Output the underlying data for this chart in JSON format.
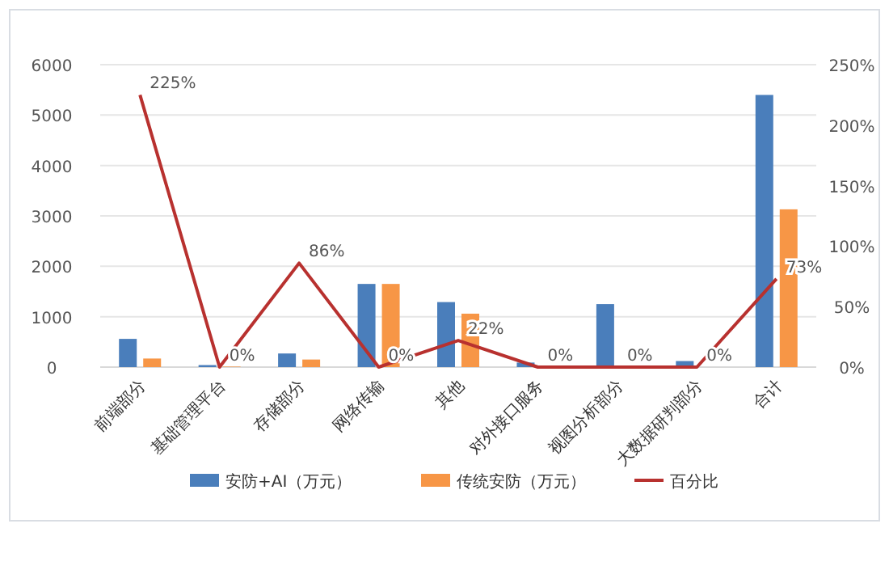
{
  "chart_data": {
    "type": "bar",
    "categories": [
      "前端部分",
      "基础管理平台",
      "存储部分",
      "网络传输",
      "其他",
      "对外接口服务",
      "视图分析部分",
      "大数据研判部分",
      "合计"
    ],
    "series": [
      {
        "name": "安防+AI（万元）",
        "color": "#4a7ebb",
        "values": [
          560,
          40,
          270,
          1650,
          1290,
          90,
          1250,
          120,
          5400
        ]
      },
      {
        "name": "传统安防（万元）",
        "color": "#f79646",
        "values": [
          170,
          10,
          150,
          1650,
          1060,
          0,
          0,
          0,
          3130
        ]
      },
      {
        "name": "百分比",
        "type": "line",
        "axis": "y2",
        "color": "#b8312f",
        "values": [
          225,
          0,
          86,
          0,
          22,
          0,
          0,
          0,
          73
        ],
        "value_labels": [
          "225%",
          "0%",
          "86%",
          "0%",
          "22%",
          "0%",
          "0%",
          "0%",
          "73%"
        ]
      }
    ],
    "ylim": [
      0,
      6000
    ],
    "yticks": [
      0,
      1000,
      2000,
      3000,
      4000,
      5000,
      6000
    ],
    "y2lim": [
      0,
      250
    ],
    "y2ticks": [
      {
        "value": 0,
        "label": "0%"
      },
      {
        "value": 50,
        "label": "50%"
      },
      {
        "value": 100,
        "label": "100%"
      },
      {
        "value": 150,
        "label": "150%"
      },
      {
        "value": 200,
        "label": "200%"
      },
      {
        "value": 250,
        "label": "250%"
      }
    ],
    "grid": "y",
    "legend": "bottom",
    "marker": "none",
    "line_style": "solid"
  }
}
